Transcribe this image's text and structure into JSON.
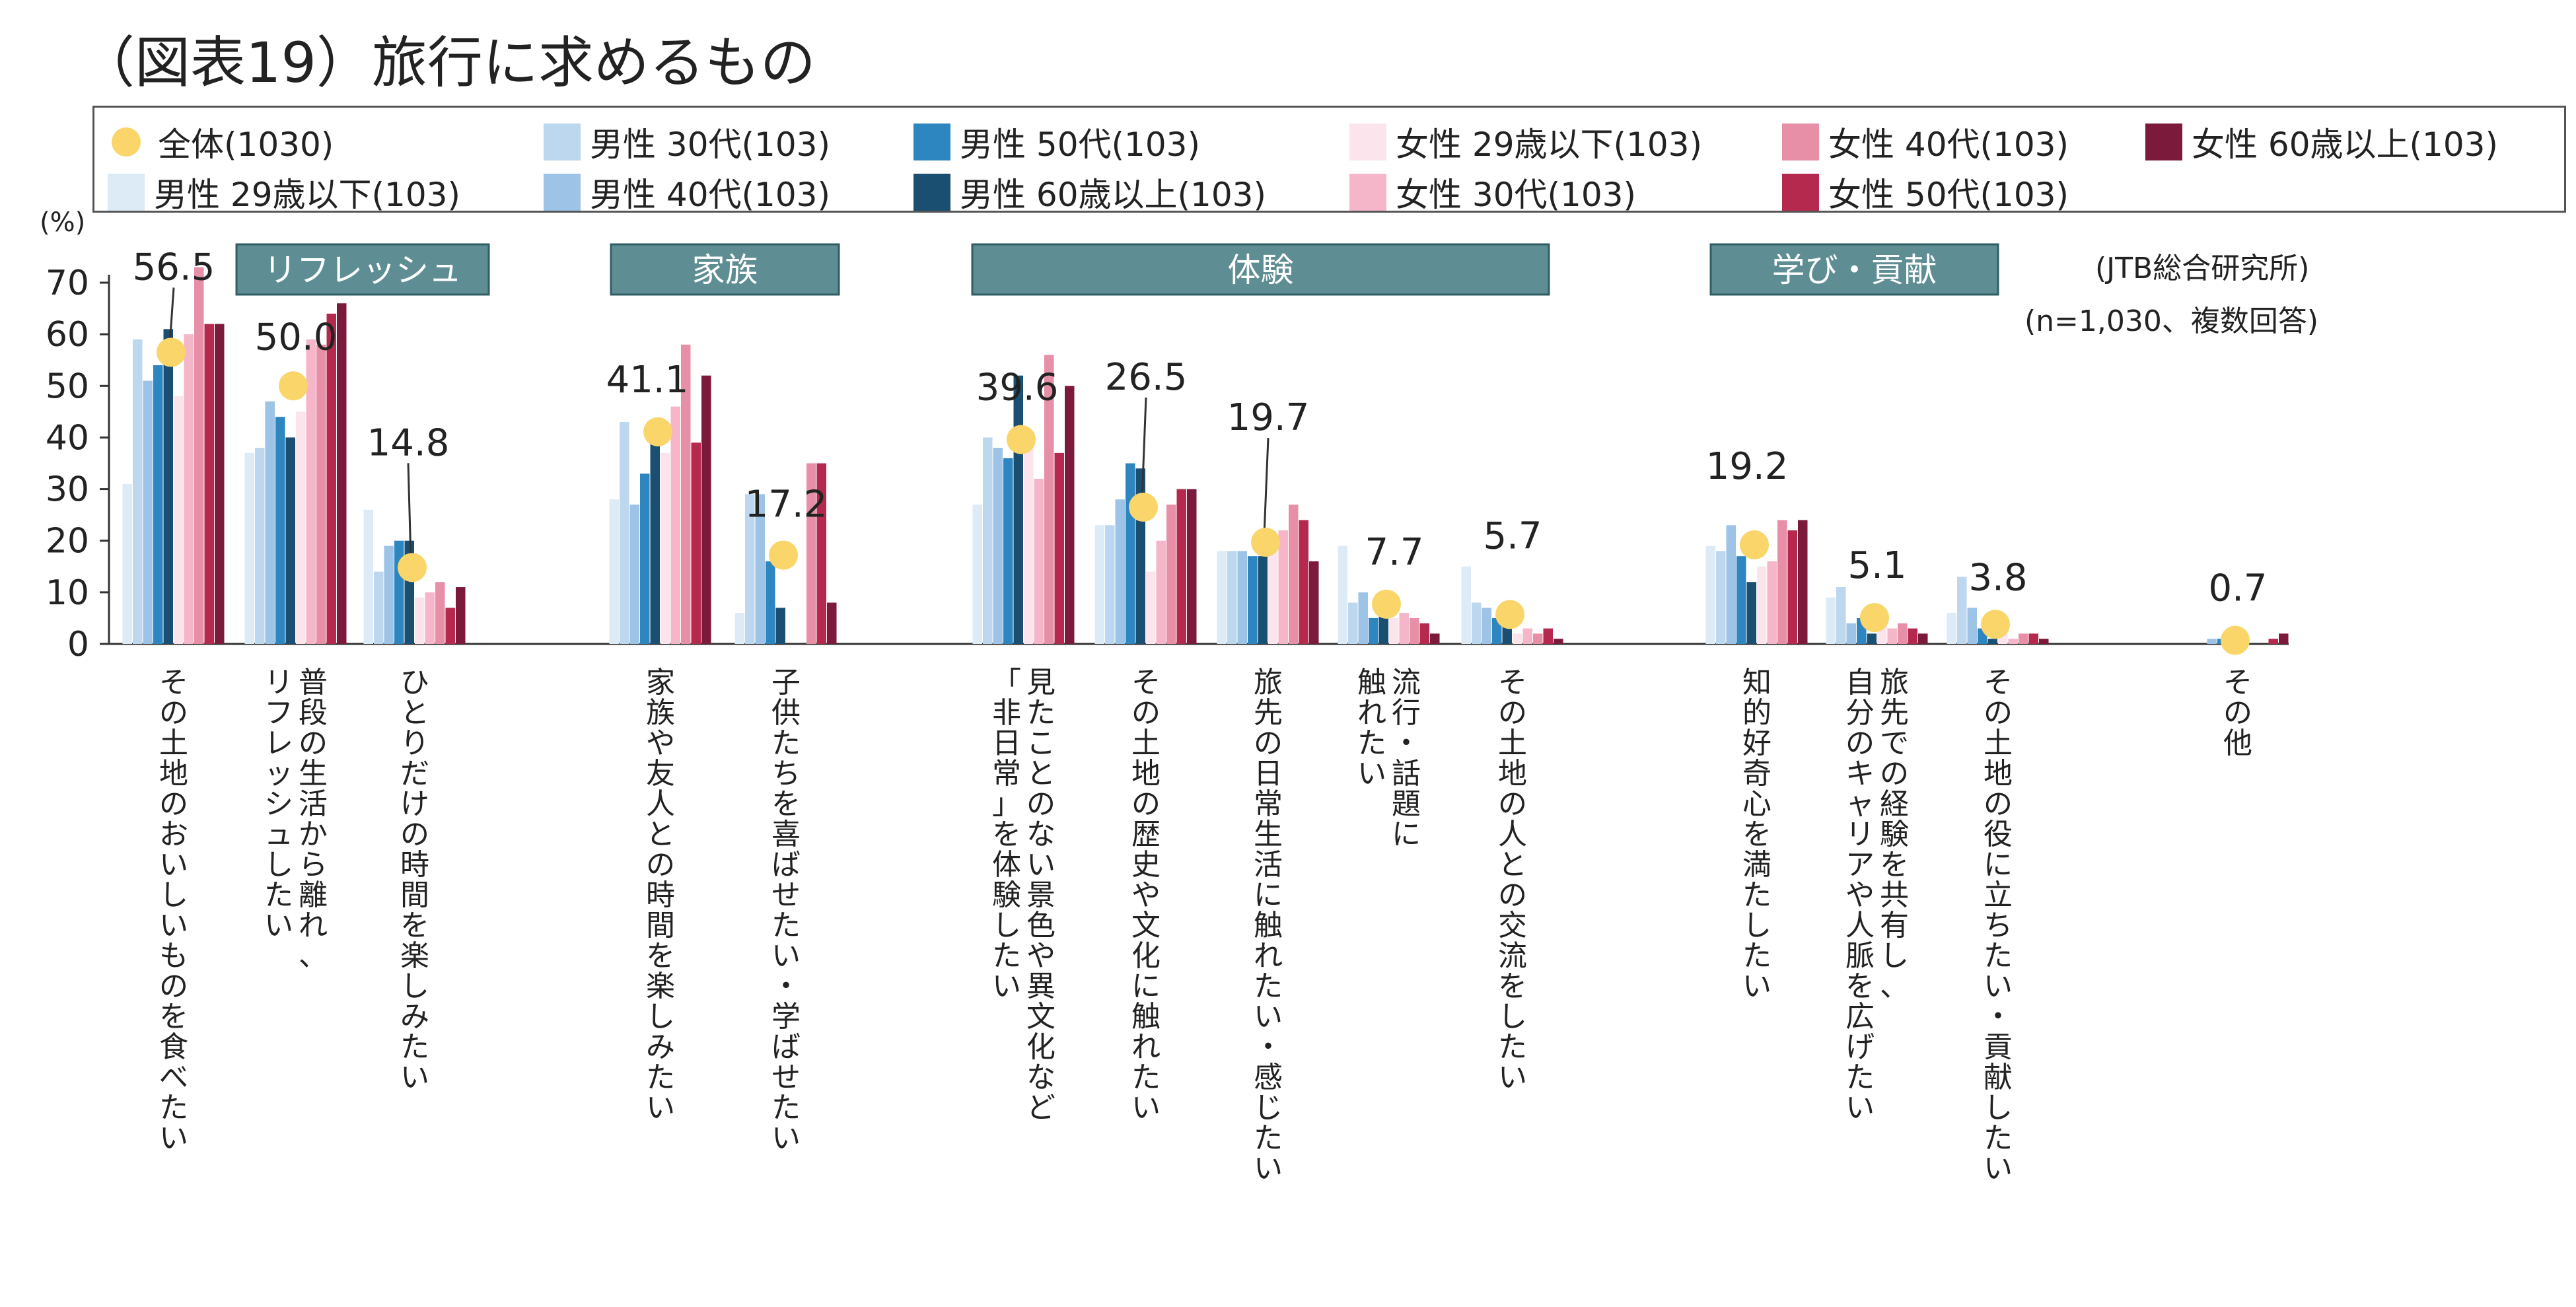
{
  "title": "（図表19）旅行に求めるもの",
  "legend_items": [
    {
      "label": "全体(1030)",
      "color": "#F9D56A",
      "kind": "dot"
    },
    {
      "label": "男性 29歳以下(103)",
      "color": "#DDEBF7"
    },
    {
      "label": "男性 30代(103)",
      "color": "#BDD7EE"
    },
    {
      "label": "男性 40代(103)",
      "color": "#9DC3E6"
    },
    {
      "label": "男性 50代(103)",
      "color": "#2E86C1"
    },
    {
      "label": "男性 60歳以上(103)",
      "color": "#1B4F72"
    },
    {
      "label": "女性 29歳以下(103)",
      "color": "#FCE4EC"
    },
    {
      "label": "女性 30代(103)",
      "color": "#F4B6C8"
    },
    {
      "label": "女性 40代(103)",
      "color": "#E88FA8"
    },
    {
      "label": "女性 50代(103)",
      "color": "#B5294E"
    },
    {
      "label": "女性 60歳以上(103)",
      "color": "#7B1A3A"
    }
  ],
  "notes": {
    "source": "(JTB総合研究所)",
    "sample": "(n=1,030、複数回答)"
  },
  "chart_data": {
    "type": "bar",
    "ylabel": "(%)",
    "ylim": [
      0,
      70
    ],
    "yticks": [
      0,
      10,
      20,
      30,
      40,
      50,
      60,
      70
    ],
    "groups": [
      {
        "label": "リフレッシュ",
        "from": 0,
        "to": 2
      },
      {
        "label": "家族",
        "from": 3,
        "to": 4
      },
      {
        "label": "体験",
        "from": 5,
        "to": 9
      },
      {
        "label": "学び・貢献",
        "from": 10,
        "to": 12
      }
    ],
    "categories": [
      "その土地のおいしいものを食べたい",
      "普段の生活から離れ、リフレッシュしたい",
      "ひとりだけの時間を楽しみたい",
      "家族や友人との時間を楽しみたい",
      "子供たちを喜ばせたい・学ばせたい",
      "見たことのない景色や異文化など「非日常」を体験したい",
      "その土地の歴史や文化に触れたい",
      "旅先の日常生活に触れたい・感じたい",
      "流行・話題に触れたい",
      "その土地の人との交流をしたい",
      "知的好奇心を満たしたい",
      "旅先での経験を共有し、自分のキャリアや人脈を広げたい",
      "その土地の役に立ちたい・貢献したい",
      "その他"
    ],
    "overall": {
      "name": "全体(1030)",
      "values": [
        56.5,
        50.0,
        14.8,
        41.1,
        17.2,
        39.6,
        26.5,
        19.7,
        7.7,
        5.7,
        19.2,
        5.1,
        3.8,
        0.7
      ]
    },
    "overall_labels": [
      "56.5",
      "50.0",
      "14.8",
      "41.1",
      "17.2",
      "39.6",
      "26.5",
      "19.7",
      "7.7",
      "5.7",
      "19.2",
      "5.1",
      "3.8",
      "0.7"
    ],
    "series": [
      {
        "name": "男性 29歳以下(103)",
        "values": [
          31,
          37,
          26,
          28,
          6,
          27,
          23,
          18,
          19,
          15,
          19,
          9,
          6,
          0
        ]
      },
      {
        "name": "男性 30代(103)",
        "values": [
          59,
          38,
          14,
          43,
          29,
          40,
          23,
          18,
          8,
          8,
          18,
          11,
          13,
          0
        ]
      },
      {
        "name": "男性 40代(103)",
        "values": [
          51,
          47,
          19,
          27,
          29,
          38,
          28,
          18,
          10,
          7,
          23,
          4,
          7,
          1
        ]
      },
      {
        "name": "男性 50代(103)",
        "values": [
          54,
          44,
          20,
          33,
          16,
          36,
          35,
          17,
          5,
          5,
          17,
          5,
          3,
          1
        ]
      },
      {
        "name": "男性 60歳以上(103)",
        "values": [
          61,
          40,
          20,
          40,
          7,
          52,
          34,
          17,
          8,
          6,
          12,
          2,
          1,
          0
        ]
      },
      {
        "name": "女性 29歳以下(103)",
        "values": [
          48,
          45,
          9,
          37,
          0,
          40,
          14,
          19,
          5,
          2,
          15,
          4,
          3,
          0
        ]
      },
      {
        "name": "女性 30代(103)",
        "values": [
          60,
          59,
          10,
          46,
          0,
          32,
          20,
          22,
          6,
          3,
          16,
          3,
          1,
          0
        ]
      },
      {
        "name": "女性 40代(103)",
        "values": [
          73,
          58,
          12,
          58,
          35,
          56,
          27,
          27,
          5,
          2,
          24,
          4,
          2,
          0
        ]
      },
      {
        "name": "女性 50代(103)",
        "values": [
          62,
          64,
          7,
          39,
          35,
          37,
          30,
          24,
          4,
          3,
          22,
          3,
          2,
          1
        ]
      },
      {
        "name": "女性 60歳以上(103)",
        "values": [
          62,
          66,
          11,
          52,
          8,
          50,
          30,
          16,
          2,
          1,
          24,
          2,
          1,
          2
        ]
      }
    ]
  }
}
